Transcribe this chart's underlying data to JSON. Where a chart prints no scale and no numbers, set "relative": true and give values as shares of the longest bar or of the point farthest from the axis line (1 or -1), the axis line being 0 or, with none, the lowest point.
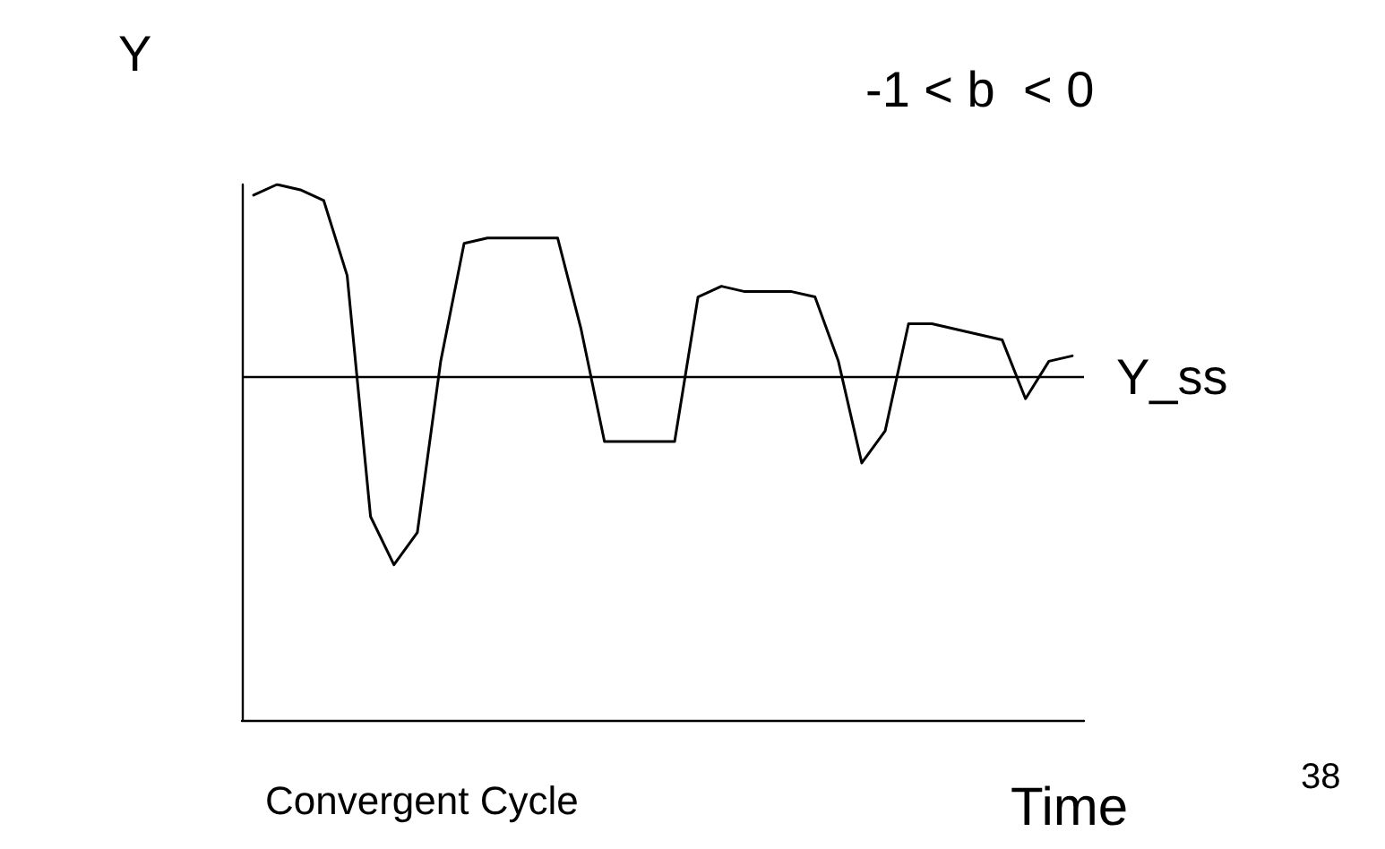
{
  "chart_data": {
    "type": "line",
    "relative": true,
    "xlabel": "Time",
    "ylabel": "Y",
    "categories": [
      null,
      null,
      null,
      null,
      null,
      null,
      null,
      null,
      null,
      null,
      null,
      null,
      null,
      null,
      null,
      null,
      null,
      null,
      null,
      null,
      null,
      null,
      null,
      null,
      null,
      null,
      null,
      null,
      null,
      null,
      null,
      null,
      null,
      null,
      null,
      null
    ],
    "series": [
      {
        "color": "#000000",
        "values": [
          0.98,
          1.0,
          0.99,
          0.97,
          0.83,
          0.38,
          0.29,
          0.35,
          0.67,
          0.89,
          0.9,
          0.9,
          0.9,
          0.9,
          0.73,
          0.52,
          0.52,
          0.52,
          0.52,
          0.79,
          0.81,
          0.8,
          0.8,
          0.8,
          0.79,
          0.67,
          0.48,
          0.54,
          0.74,
          0.74,
          0.73,
          0.72,
          0.71,
          0.6,
          0.67,
          0.68
        ]
      }
    ],
    "ref_lines": [
      {
        "axis": "y",
        "value": 0.64,
        "label": "Y_ss",
        "color": "#000000"
      }
    ],
    "annotations": [
      "-1 < b  < 0",
      "Convergent Cycle",
      "38"
    ],
    "grid": false,
    "marker": "none",
    "line_style": "solid"
  }
}
